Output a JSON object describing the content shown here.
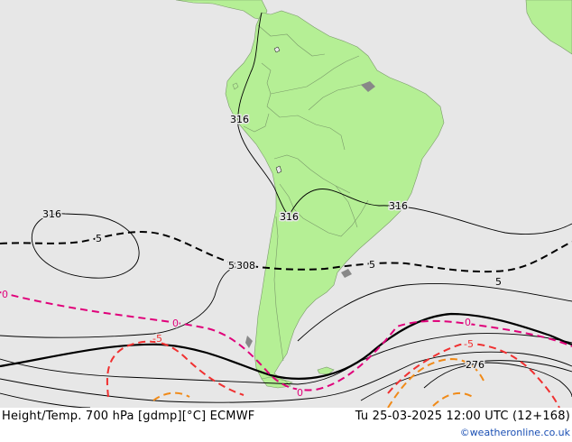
{
  "map": {
    "colors": {
      "ocean": "#e7e7e7",
      "land": "#b5ef95",
      "land_border": "#7a9a6a",
      "height_contour": "#000000",
      "temp_isotherm": "#000000",
      "temp_zero": "#e0007a",
      "temp_minus5": "#f03030",
      "temp_minus10": "#f08a18",
      "coastline_gray": "#888888"
    },
    "contour_labels": {
      "h316_west": "316",
      "h316_peru": "316",
      "h316_chile": "316",
      "h316_east": "316",
      "h308": "308",
      "h276": "276",
      "t5_west": "5",
      "t5_mid": "5",
      "t5_east": "5",
      "t5_far_east": "5",
      "t0_west": "0",
      "t0_mid": "0",
      "t0_south": "0",
      "t0_east": "0",
      "tm5_west": "-5",
      "tm5_east": "-5"
    }
  },
  "footer": {
    "title": "Height/Temp. 700 hPa [gdmp][°C] ECMWF",
    "datetime": "Tu 25-03-2025 12:00 UTC (12+168)",
    "credit": "©weatheronline.co.uk"
  }
}
